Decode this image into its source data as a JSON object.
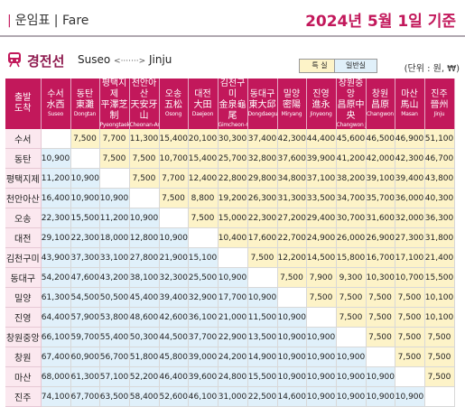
{
  "header": {
    "title_left": "운임표 | Fare",
    "title_right": "2024년 5월 1일 기준"
  },
  "subheader": {
    "line_name": "경전선",
    "route_from": "Suseo",
    "route_to": "Jinju",
    "legend_special": "특 실",
    "legend_general": "일반실",
    "unit": "(단위 : 원, ₩)"
  },
  "corner": {
    "line1": "출발",
    "line2": "도착"
  },
  "colors": {
    "brand": "#c2185b",
    "special": "#fdf3c8",
    "general": "#e0f0fa"
  },
  "columns": [
    {
      "ko": "수서",
      "hanja": "水西",
      "en": "Suseo"
    },
    {
      "ko": "동탄",
      "hanja": "東灘",
      "en": "Dongtan"
    },
    {
      "ko": "평택지제",
      "hanja": "平澤芝制",
      "en": "Pyeongtaek Jije"
    },
    {
      "ko": "천안아산",
      "hanja": "天安牙山",
      "en": "Cheonan-Asan"
    },
    {
      "ko": "오송",
      "hanja": "五松",
      "en": "Osong"
    },
    {
      "ko": "대전",
      "hanja": "大田",
      "en": "Daejeon"
    },
    {
      "ko": "김천구미",
      "hanja": "金泉龜尾",
      "en": "Gimcheon-Gumi"
    },
    {
      "ko": "동대구",
      "hanja": "東大邱",
      "en": "Dongdaegu"
    },
    {
      "ko": "밀양",
      "hanja": "密陽",
      "en": "Miryang"
    },
    {
      "ko": "진영",
      "hanja": "進永",
      "en": "Jinyeong"
    },
    {
      "ko": "창원중앙",
      "hanja": "昌原中央",
      "en": "Changwon Jungang"
    },
    {
      "ko": "창원",
      "hanja": "昌原",
      "en": "Changwon"
    },
    {
      "ko": "마산",
      "hanja": "馬山",
      "en": "Masan"
    },
    {
      "ko": "진주",
      "hanja": "晉州",
      "en": "Jinju"
    }
  ],
  "rows": [
    {
      "station": "수서",
      "cells": [
        "",
        "7,500",
        "7,700",
        "11,300",
        "15,400",
        "20,100",
        "30,300",
        "37,400",
        "42,300",
        "44,400",
        "45,600",
        "46,500",
        "46,900",
        "51,100"
      ]
    },
    {
      "station": "동탄",
      "cells": [
        "10,900",
        "",
        "7,500",
        "7,500",
        "10,700",
        "15,400",
        "25,700",
        "32,800",
        "37,600",
        "39,900",
        "41,200",
        "42,000",
        "42,300",
        "46,700"
      ]
    },
    {
      "station": "평택지제",
      "cells": [
        "11,200",
        "10,900",
        "",
        "7,500",
        "7,700",
        "12,400",
        "22,800",
        "29,800",
        "34,800",
        "37,100",
        "38,200",
        "39,100",
        "39,400",
        "43,800"
      ]
    },
    {
      "station": "천안아산",
      "cells": [
        "16,400",
        "10,900",
        "10,900",
        "",
        "7,500",
        "8,800",
        "19,200",
        "26,300",
        "31,300",
        "33,500",
        "34,700",
        "35,700",
        "36,000",
        "40,300"
      ]
    },
    {
      "station": "오송",
      "cells": [
        "22,300",
        "15,500",
        "11,200",
        "10,900",
        "",
        "7,500",
        "15,000",
        "22,300",
        "27,200",
        "29,400",
        "30,700",
        "31,600",
        "32,000",
        "36,300"
      ]
    },
    {
      "station": "대전",
      "cells": [
        "29,100",
        "22,300",
        "18,000",
        "12,800",
        "10,900",
        "",
        "10,400",
        "17,600",
        "22,700",
        "24,900",
        "26,000",
        "26,900",
        "27,300",
        "31,800"
      ]
    },
    {
      "station": "김천구미",
      "cells": [
        "43,900",
        "37,300",
        "33,100",
        "27,800",
        "21,900",
        "15,100",
        "",
        "7,500",
        "12,200",
        "14,500",
        "15,800",
        "16,700",
        "17,100",
        "21,400"
      ]
    },
    {
      "station": "동대구",
      "cells": [
        "54,200",
        "47,600",
        "43,200",
        "38,100",
        "32,300",
        "25,500",
        "10,900",
        "",
        "7,500",
        "7,900",
        "9,300",
        "10,300",
        "10,700",
        "15,500"
      ]
    },
    {
      "station": "밀양",
      "cells": [
        "61,300",
        "54,500",
        "50,500",
        "45,400",
        "39,400",
        "32,900",
        "17,700",
        "10,900",
        "",
        "7,500",
        "7,500",
        "7,500",
        "7,500",
        "10,100"
      ]
    },
    {
      "station": "진영",
      "cells": [
        "64,400",
        "57,900",
        "53,800",
        "48,600",
        "42,600",
        "36,100",
        "21,000",
        "11,500",
        "10,900",
        "",
        "7,500",
        "7,500",
        "7,500",
        "10,100"
      ]
    },
    {
      "station": "창원중앙",
      "cells": [
        "66,100",
        "59,700",
        "55,400",
        "50,300",
        "44,500",
        "37,700",
        "22,900",
        "13,500",
        "10,900",
        "10,900",
        "",
        "7,500",
        "7,500",
        "7,500"
      ]
    },
    {
      "station": "창원",
      "cells": [
        "67,400",
        "60,900",
        "56,700",
        "51,800",
        "45,800",
        "39,000",
        "24,200",
        "14,900",
        "10,900",
        "10,900",
        "10,900",
        "",
        "7,500",
        "7,500"
      ]
    },
    {
      "station": "마산",
      "cells": [
        "68,000",
        "61,300",
        "57,100",
        "52,200",
        "46,400",
        "39,600",
        "24,800",
        "15,500",
        "10,900",
        "10,900",
        "10,900",
        "10,900",
        "",
        "7,500"
      ]
    },
    {
      "station": "진주",
      "cells": [
        "74,100",
        "67,700",
        "63,500",
        "58,400",
        "52,600",
        "46,100",
        "31,000",
        "22,500",
        "14,600",
        "10,900",
        "10,900",
        "10,900",
        "10,900",
        ""
      ]
    }
  ]
}
